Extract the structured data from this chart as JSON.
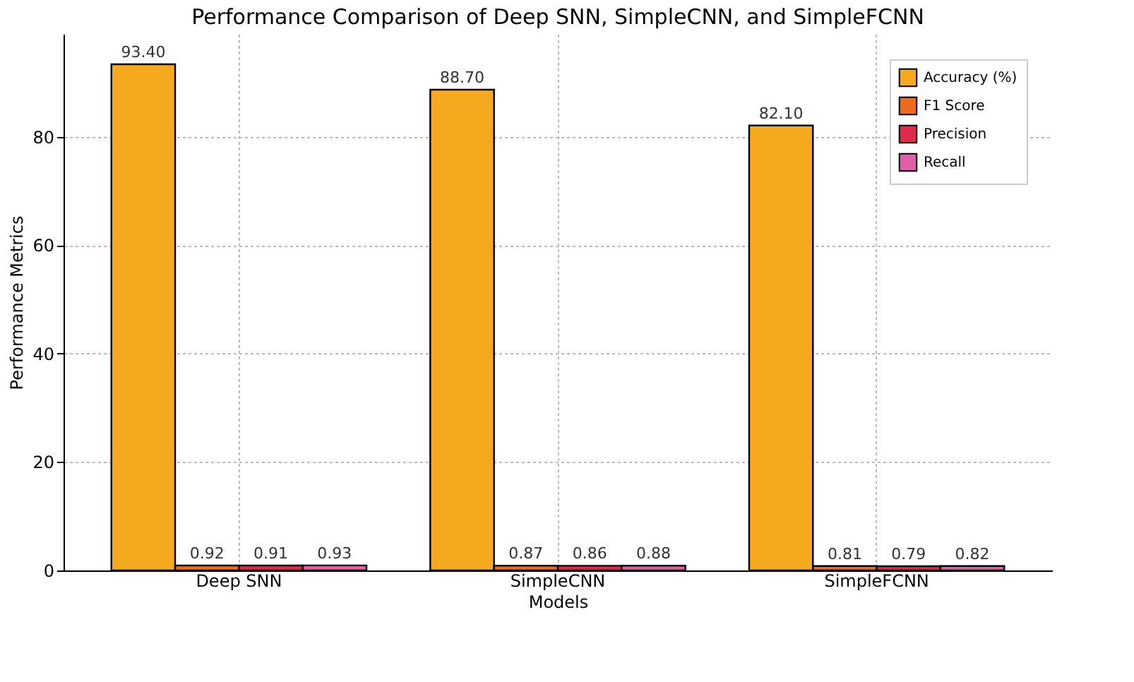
{
  "chart_data": {
    "type": "bar",
    "title": "Performance Comparison of Deep SNN, SimpleCNN, and SimpleFCNN",
    "xlabel": "Models",
    "ylabel": "Performance Metrics",
    "categories": [
      "Deep SNN",
      "SimpleCNN",
      "SimpleFCNN"
    ],
    "series": [
      {
        "name": "Accuracy (%)",
        "color": "#f5a91e",
        "values": [
          93.4,
          88.7,
          82.1
        ],
        "value_labels": [
          "93.40",
          "88.70",
          "82.10"
        ]
      },
      {
        "name": "F1 Score",
        "color": "#ee6a1c",
        "values": [
          0.92,
          0.87,
          0.81
        ],
        "value_labels": [
          "0.92",
          "0.87",
          "0.81"
        ]
      },
      {
        "name": "Precision",
        "color": "#e2284e",
        "values": [
          0.91,
          0.86,
          0.79
        ],
        "value_labels": [
          "0.91",
          "0.86",
          "0.79"
        ]
      },
      {
        "name": "Recall",
        "color": "#e060a8",
        "values": [
          0.93,
          0.88,
          0.82
        ],
        "value_labels": [
          "0.93",
          "0.88",
          "0.82"
        ]
      }
    ],
    "ylim": [
      0,
      99
    ],
    "yticks": [
      0,
      20,
      40,
      60,
      80
    ],
    "grid": true,
    "legend": "top right"
  }
}
